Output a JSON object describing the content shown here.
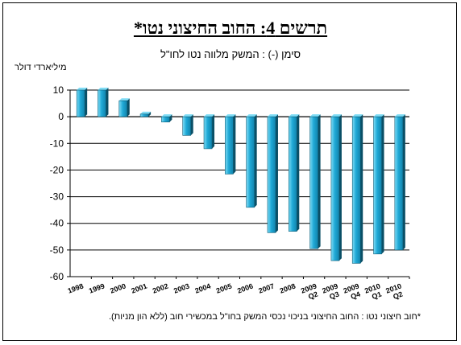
{
  "header": {
    "title": "תרשים 4: החוב החיצוני נטו*",
    "subtitle": "סימן (-) : המשק מלווה נטו לחו\"ל",
    "unit": "מיליארדי דולר",
    "footnote": "*חוב חיצוני נטו : החוב החיצוני בניכוי נכסי המשק בחו\"ל במכשירי חוב (ללא הון מניות)."
  },
  "chart_data": {
    "type": "bar",
    "categories": [
      "1998",
      "1999",
      "2000",
      "2001",
      "2002",
      "2003",
      "2004",
      "2005",
      "2006",
      "2007",
      "2008",
      "Q2 2009",
      "Q3 2009",
      "Q4 2009",
      "Q1 2010",
      "Q2 2010"
    ],
    "values": [
      10,
      10,
      6,
      1,
      -2,
      -7,
      -12,
      -21.5,
      -34,
      -43.5,
      -43,
      -49.5,
      -54,
      -55,
      -51.5,
      -50
    ],
    "title": "תרשים 4: החוב החיצוני נטו*",
    "xlabel": "",
    "ylabel": "מיליארדי דולר",
    "ylim": [
      -60,
      10
    ],
    "yticks": [
      10,
      0,
      -10,
      -20,
      -30,
      -40,
      -50,
      -60
    ],
    "grid": true,
    "colors": {
      "bar": "#1fa9d6",
      "bar_dark": "#0a4f66",
      "bar_light": "#7fdcf5",
      "gridline": "#000000",
      "plot_bg": "#ffffff"
    }
  }
}
